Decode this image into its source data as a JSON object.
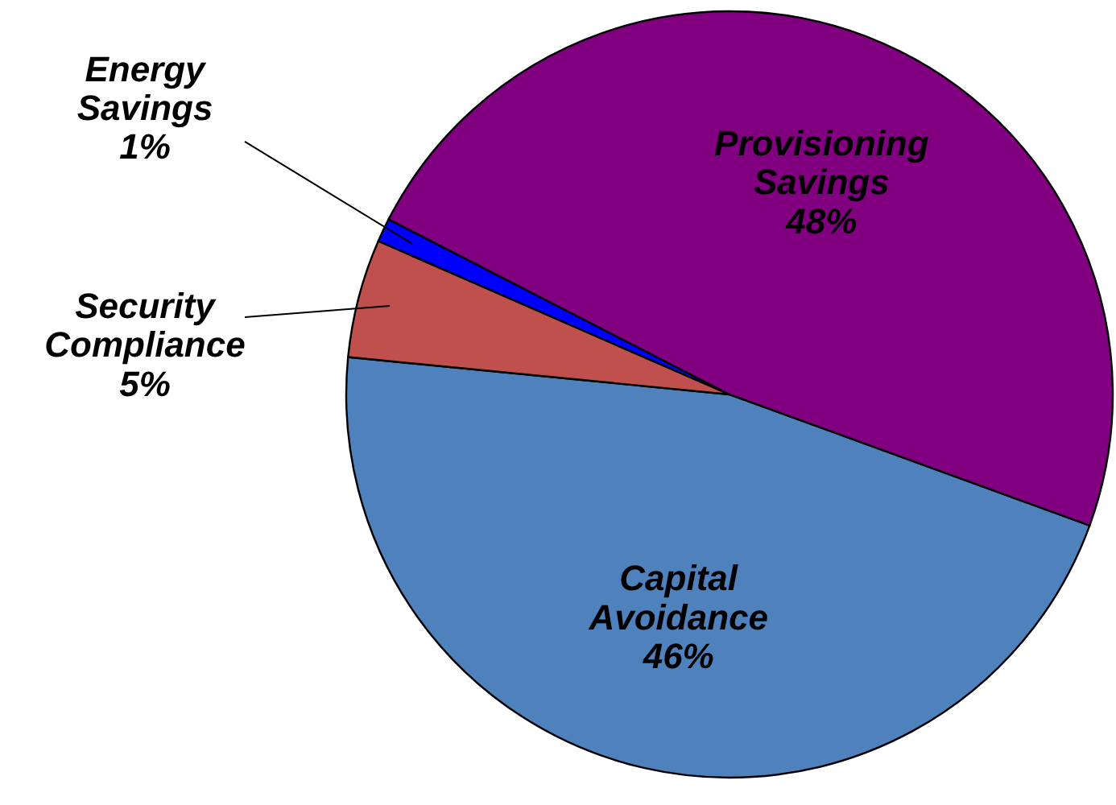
{
  "chart_data": {
    "type": "pie",
    "categories": [
      "Capital Avoidance",
      "Security Compliance",
      "Energy Savings",
      "Provisioning Savings"
    ],
    "values": [
      46,
      5,
      1,
      48
    ],
    "value_labels": [
      "46%",
      "5%",
      "1%",
      "48%"
    ],
    "colors": [
      "#4f81bd",
      "#c0504d",
      "#0000ff",
      "#800080"
    ]
  }
}
